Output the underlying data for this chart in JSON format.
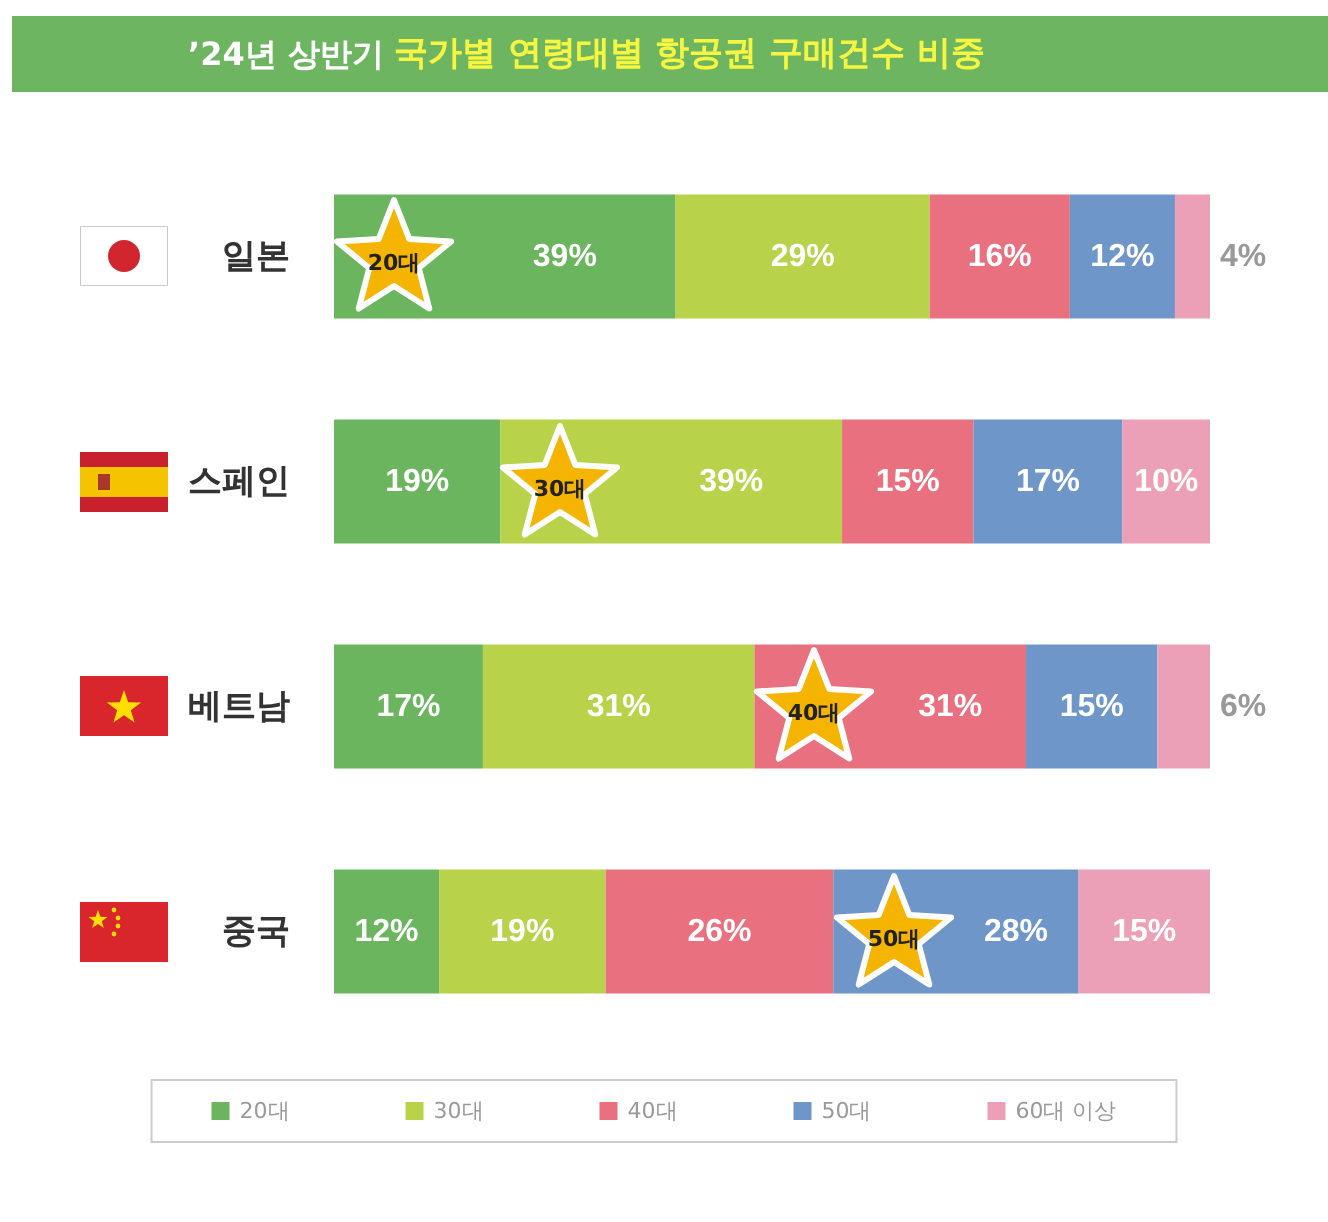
{
  "chart_data": {
    "type": "bar",
    "orientation": "horizontal",
    "stacked": true,
    "title": "’24년 상반기 국가별 연령대별 항공권 구매건수 비중",
    "categories": [
      "일본",
      "스페인",
      "베트남",
      "중국"
    ],
    "series": [
      {
        "name": "20대",
        "color": "#6ab55e",
        "values": [
          39,
          19,
          17,
          12
        ],
        "value_labels": [
          "39%",
          "19%",
          "17%",
          "12%"
        ]
      },
      {
        "name": "30대",
        "color": "#b8d24a",
        "values": [
          29,
          39,
          31,
          19
        ],
        "value_labels": [
          "29%",
          "39%",
          "31%",
          "19%"
        ]
      },
      {
        "name": "40대",
        "color": "#e8707f",
        "values": [
          16,
          15,
          31,
          26
        ],
        "value_labels": [
          "16%",
          "15%",
          "31%",
          "26%"
        ]
      },
      {
        "name": "50대",
        "color": "#6f96c8",
        "values": [
          12,
          17,
          15,
          28
        ],
        "value_labels": [
          "12%",
          "17%",
          "15%",
          "28%"
        ]
      },
      {
        "name": "60대 이상",
        "color": "#eba0b8",
        "values": [
          4,
          10,
          6,
          15
        ],
        "value_labels": [
          "4%",
          "10%",
          "6%",
          "15%"
        ]
      }
    ],
    "annotations": [
      "20대",
      "30대",
      "40대",
      "50대"
    ],
    "legend": "bottom"
  }
}
